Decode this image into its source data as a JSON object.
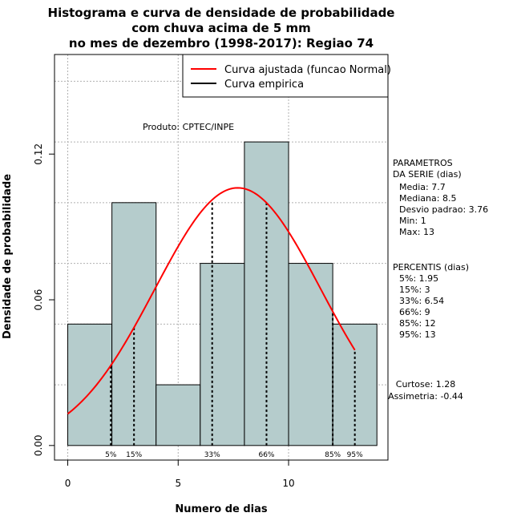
{
  "chart_data": {
    "type": "bar",
    "title": [
      "Histograma e curva de densidade de probabilidade",
      "com chuva acima de 5 mm",
      "no mes de dezembro (1998-2017): Regiao 74"
    ],
    "xlabel": "Numero de dias",
    "ylabel": "Densidade de probabilidade",
    "xlim": [
      -0.6,
      14.5
    ],
    "ylim": [
      -0.006,
      0.161
    ],
    "x_ticks": [
      0,
      5,
      10
    ],
    "y_ticks": [
      0.0,
      0.06,
      0.12
    ],
    "y_tick_labels": [
      "0.00",
      "0.06",
      "0.12"
    ],
    "grid": true,
    "bins": [
      {
        "x0": 0,
        "x1": 2,
        "value": 0.05
      },
      {
        "x0": 2,
        "x1": 4,
        "value": 0.1
      },
      {
        "x0": 4,
        "x1": 6,
        "value": 0.025
      },
      {
        "x0": 6,
        "x1": 8,
        "value": 0.075
      },
      {
        "x0": 8,
        "x1": 10,
        "value": 0.125
      },
      {
        "x0": 10,
        "x1": 12,
        "value": 0.075
      },
      {
        "x0": 12,
        "x1": 14,
        "value": 0.05
      }
    ],
    "bar_color": "#b5cccc",
    "fitted_curve": {
      "name": "Curva ajustada (funcao Normal)",
      "mean": 7.7,
      "sd": 3.76,
      "x_range": [
        0,
        13
      ],
      "color": "#ff0000"
    },
    "empirical_curve": {
      "name": "Curva empirica",
      "color": "#000000"
    },
    "legend_position": "top-right",
    "percentile_lines": [
      {
        "label": "5%",
        "x": 1.95
      },
      {
        "label": "15%",
        "x": 3
      },
      {
        "label": "33%",
        "x": 6.54
      },
      {
        "label": "66%",
        "x": 9
      },
      {
        "label": "85%",
        "x": 12
      },
      {
        "label": "95%",
        "x": 13
      }
    ],
    "annotation": "Produto: CPTEC/INPE",
    "parameters": {
      "heading": [
        "PARAMETROS",
        "DA SERIE (dias)"
      ],
      "lines": [
        "Media: 7.7",
        "Mediana: 8.5",
        "Desvio padrao: 3.76",
        "Min: 1",
        "Max: 13"
      ]
    },
    "percentiles_panel": {
      "heading": "PERCENTIS (dias)",
      "lines": [
        "5%: 1.95",
        "15%: 3",
        "33%: 6.54",
        "66%: 9",
        "85%: 12",
        "95%: 13"
      ]
    },
    "shape": {
      "lines": [
        "Curtose: 1.28",
        "Assimetria: -0.44"
      ]
    }
  }
}
